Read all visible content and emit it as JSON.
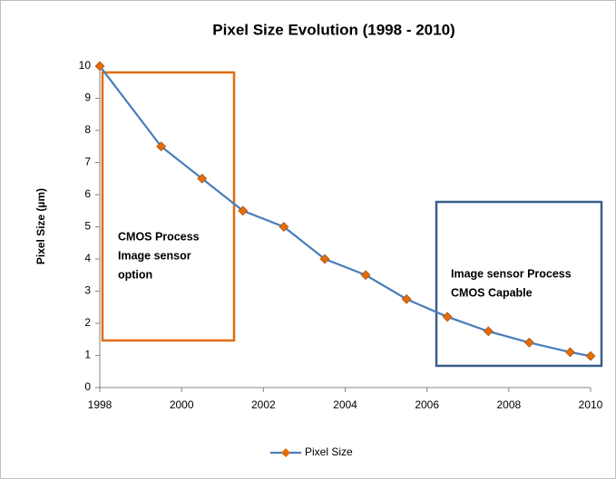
{
  "chart_data": {
    "type": "line",
    "title": "Pixel Size Evolution (1998 - 2010)",
    "y_label": "Pixel Size (µm)",
    "series": [
      {
        "name": "Pixel Size",
        "color": "#4a7ebb",
        "marker_color": "#e46c0a",
        "x": [
          1998,
          1999.5,
          2000.5,
          2001.5,
          2002.5,
          2003.5,
          2004.5,
          2005.5,
          2006.5,
          2007.5,
          2008.5,
          2009.5,
          2010
        ],
        "values": [
          10,
          7.5,
          6.5,
          5.5,
          5.0,
          4.0,
          3.5,
          2.75,
          2.2,
          1.75,
          1.4,
          1.1,
          0.98
        ]
      }
    ],
    "xlim": [
      1998,
      2010
    ],
    "xticks": [
      1998,
      2000,
      2002,
      2004,
      2006,
      2008,
      2010
    ],
    "ylim": [
      0,
      10
    ],
    "yticks": [
      0,
      1,
      2,
      3,
      4,
      5,
      6,
      7,
      8,
      9,
      10
    ],
    "legend": "bottom",
    "annotations": [
      {
        "lines": [
          "CMOS Process",
          "Image sensor",
          "option"
        ],
        "color": "#e46c0a"
      },
      {
        "lines": [
          "Image sensor Process",
          "CMOS Capable"
        ],
        "color": "#385d8a"
      }
    ]
  }
}
